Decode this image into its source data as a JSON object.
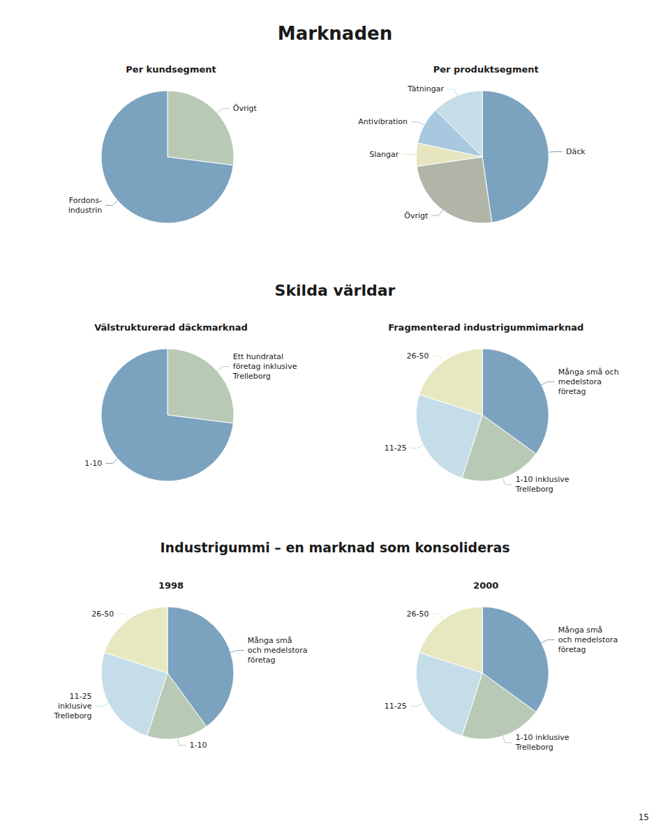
{
  "chart_data": [
    {
      "type": "pie",
      "title": "Per kundsegment",
      "categories": [
        "Övrigt",
        "Fordons-\nindustrin"
      ],
      "values": [
        27,
        73
      ],
      "colors": [
        "#b8c9b5",
        "#7ba3c0"
      ]
    },
    {
      "type": "pie",
      "title": "Per produktsegment",
      "categories": [
        "Däck",
        "Övrigt",
        "Slangar",
        "Antivibration",
        "Tätningar"
      ],
      "values": [
        42,
        22,
        5,
        8,
        11
      ],
      "colors": [
        "#7ba3c0",
        "#b0b5a8",
        "#e5e5c0",
        "#a8c8e0",
        "#c5dde8"
      ]
    },
    {
      "type": "pie",
      "title": "Välstrukturerad däckmarknad",
      "categories": [
        "Ett hundratal\nföretag inklusive\nTrelleborg",
        "1-10"
      ],
      "values": [
        27,
        73
      ],
      "colors": [
        "#b8c9b5",
        "#7ba3c0"
      ]
    },
    {
      "type": "pie",
      "title": "Fragmenterad industrigummimarknad",
      "categories": [
        "Många små och\nmedelstora\nföretag",
        "1-10 inklusive\nTrelleborg",
        "11-25",
        "26-50"
      ],
      "values": [
        35,
        20,
        25,
        20
      ],
      "colors": [
        "#7ba3c0",
        "#b8c9b5",
        "#c5dde8",
        "#e8e8c0"
      ]
    },
    {
      "type": "pie",
      "title": "1998",
      "categories": [
        "Många små\noch medelstora\nföretag",
        "1-10",
        "11-25\ninklusive\nTrelleborg",
        "26-50"
      ],
      "values": [
        40,
        15,
        25,
        20
      ],
      "colors": [
        "#7ba3c0",
        "#b8c9b5",
        "#c5dde8",
        "#e8e8c0"
      ]
    },
    {
      "type": "pie",
      "title": "2000",
      "categories": [
        "Många små\noch medelstora\nföretag",
        "1-10 inklusive\nTrelleborg",
        "11-25",
        "26-50"
      ],
      "values": [
        35,
        20,
        25,
        20
      ],
      "colors": [
        "#7ba3c0",
        "#b8c9b5",
        "#c5dde8",
        "#e8e8c0"
      ]
    }
  ],
  "headings": [
    "Marknaden",
    "Skilda världar",
    "Industrigummi – en marknad som konsolideras"
  ],
  "page_number": "15"
}
